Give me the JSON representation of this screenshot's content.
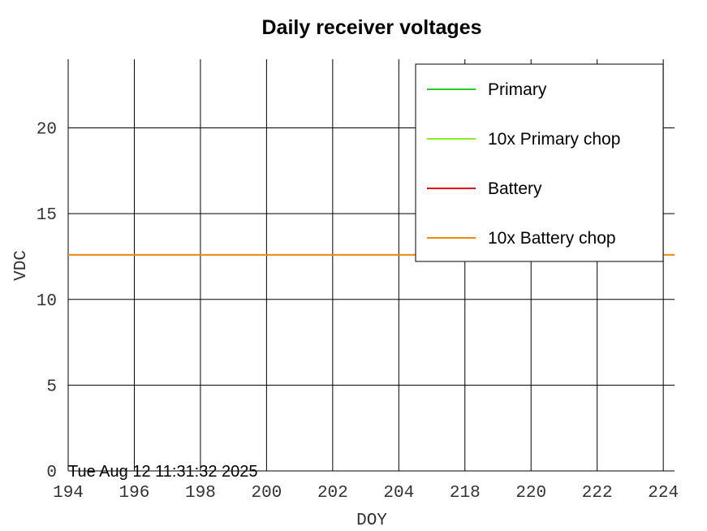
{
  "chart_data": {
    "type": "line",
    "title": "Daily receiver voltages",
    "xlabel": "DOY",
    "ylabel": "VDC",
    "x_tick_labels": [
      "194",
      "196",
      "198",
      "200",
      "202",
      "204",
      "218",
      "220",
      "222",
      "224"
    ],
    "y_ticks": [
      0,
      5,
      10,
      15,
      20
    ],
    "ylim": [
      0,
      24
    ],
    "grid": true,
    "legend_position": "top-right",
    "series": [
      {
        "name": "Primary",
        "color": "#22cc22",
        "values": []
      },
      {
        "name": "10x Primary chop",
        "color": "#88ee22",
        "values": []
      },
      {
        "name": "Battery",
        "color": "#dd1111",
        "values": []
      },
      {
        "name": "10x Battery chop",
        "color": "#ee8811",
        "values": [
          12.6,
          12.6
        ]
      }
    ],
    "timestamp": "Tue Aug 12 11:31:32 2025"
  }
}
